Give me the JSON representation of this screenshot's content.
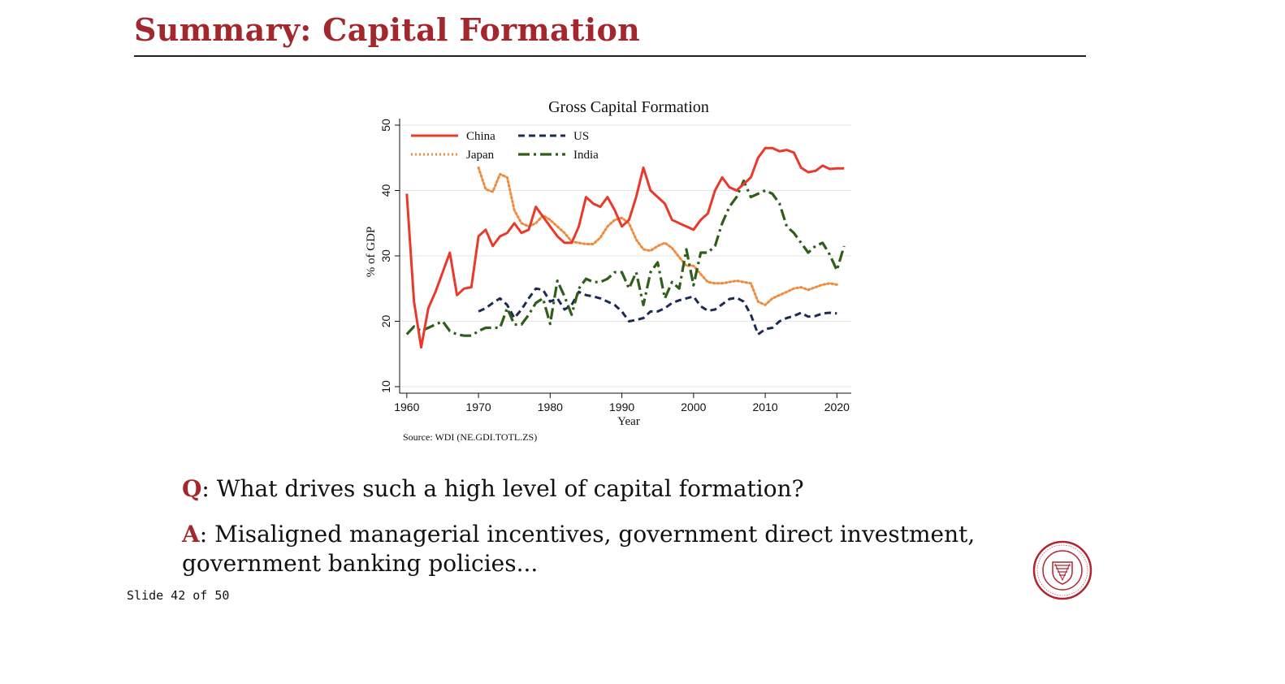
{
  "slide": {
    "title": "Summary: Capital Formation",
    "counter": "Slide 42 of 50",
    "question_key": "Q",
    "question_text": ": What drives such a high level of capital formation?",
    "answer_key": "A",
    "answer_text": ": Misaligned managerial incentives, government direct investment, government banking policies..."
  },
  "colors": {
    "accent": "#a3282e",
    "china": "#e8392b",
    "us": "#1c2a54",
    "japan": "#f08a3c",
    "india": "#2e5e1a"
  },
  "chart_data": {
    "type": "line",
    "title": "Gross Capital Formation",
    "xlabel": "Year",
    "ylabel": "% of GDP",
    "source": "Source: WDI (NE.GDI.TOTL.ZS)",
    "xlim": [
      1959,
      2022
    ],
    "ylim": [
      9,
      51
    ],
    "xticks": [
      1960,
      1970,
      1980,
      1990,
      2000,
      2010,
      2020
    ],
    "yticks": [
      10,
      20,
      30,
      40,
      50
    ],
    "grid": true,
    "legend_position": "top-left",
    "series": [
      {
        "name": "China",
        "style": "solid",
        "x": [
          1960,
          1961,
          1962,
          1963,
          1964,
          1965,
          1966,
          1967,
          1968,
          1969,
          1970,
          1971,
          1972,
          1973,
          1974,
          1975,
          1976,
          1977,
          1978,
          1979,
          1980,
          1981,
          1982,
          1983,
          1984,
          1985,
          1986,
          1987,
          1988,
          1989,
          1990,
          1991,
          1992,
          1993,
          1994,
          1995,
          1996,
          1997,
          1998,
          1999,
          2000,
          2001,
          2002,
          2003,
          2004,
          2005,
          2006,
          2007,
          2008,
          2009,
          2010,
          2011,
          2012,
          2013,
          2014,
          2015,
          2016,
          2017,
          2018,
          2019,
          2020,
          2021
        ],
        "values": [
          39.5,
          23,
          16,
          22,
          24.5,
          27.5,
          30.5,
          24,
          25,
          25.2,
          33,
          34,
          31.5,
          33,
          33.5,
          35,
          33.5,
          34,
          37.5,
          36,
          34.5,
          33,
          32,
          32,
          34.5,
          39,
          38,
          37.5,
          39,
          37,
          34.5,
          35.5,
          39,
          43.5,
          40,
          39,
          38,
          35.5,
          35,
          34.5,
          34,
          35.5,
          36.5,
          40,
          42,
          40.5,
          40,
          41,
          42,
          45,
          46.5,
          46.5,
          46,
          46.2,
          45.8,
          43.5,
          42.8,
          43,
          43.8,
          43.3,
          43.4,
          43.4
        ]
      },
      {
        "name": "US",
        "style": "dash",
        "x": [
          1970,
          1971,
          1972,
          1973,
          1974,
          1975,
          1976,
          1977,
          1978,
          1979,
          1980,
          1981,
          1982,
          1983,
          1984,
          1985,
          1986,
          1987,
          1988,
          1989,
          1990,
          1991,
          1992,
          1993,
          1994,
          1995,
          1996,
          1997,
          1998,
          1999,
          2000,
          2001,
          2002,
          2003,
          2004,
          2005,
          2006,
          2007,
          2008,
          2009,
          2010,
          2011,
          2012,
          2013,
          2014,
          2015,
          2016,
          2017,
          2018,
          2019,
          2020
        ],
        "values": [
          21.5,
          22,
          22.8,
          23.5,
          22.5,
          20.5,
          21.8,
          23.5,
          25,
          24.8,
          23,
          23.5,
          21.8,
          22.5,
          24.5,
          24,
          23.8,
          23.5,
          23,
          22.5,
          21.5,
          20,
          20.2,
          20.5,
          21.5,
          21.5,
          22,
          22.8,
          23.2,
          23.5,
          23.8,
          22.3,
          21.6,
          21.8,
          22.6,
          23.4,
          23.6,
          23,
          21,
          18,
          18.8,
          19,
          20,
          20.5,
          20.8,
          21.3,
          20.7,
          20.8,
          21.2,
          21.3,
          21.2
        ]
      },
      {
        "name": "Japan",
        "style": "dot",
        "x": [
          1970,
          1971,
          1972,
          1973,
          1974,
          1975,
          1976,
          1977,
          1978,
          1979,
          1980,
          1981,
          1982,
          1983,
          1984,
          1985,
          1986,
          1987,
          1988,
          1989,
          1990,
          1991,
          1992,
          1993,
          1994,
          1995,
          1996,
          1997,
          1998,
          1999,
          2000,
          2001,
          2002,
          2003,
          2004,
          2005,
          2006,
          2007,
          2008,
          2009,
          2010,
          2011,
          2012,
          2013,
          2014,
          2015,
          2016,
          2017,
          2018,
          2019,
          2020
        ],
        "values": [
          43.5,
          40.2,
          39.8,
          42.5,
          42,
          37,
          35,
          34.5,
          35,
          36.2,
          35.5,
          34.5,
          33.5,
          32.2,
          32,
          31.8,
          31.8,
          32.8,
          34.5,
          35.5,
          35.8,
          35,
          32.5,
          31,
          30.8,
          31.5,
          32,
          31.2,
          29.8,
          28.5,
          28.5,
          27.2,
          26,
          25.8,
          25.8,
          26,
          26.2,
          26,
          25.8,
          23,
          22.5,
          23.5,
          24,
          24.5,
          25,
          25.2,
          24.8,
          25.2,
          25.6,
          25.8,
          25.6
        ]
      },
      {
        "name": "India",
        "style": "dashdot",
        "x": [
          1960,
          1961,
          1962,
          1963,
          1964,
          1965,
          1966,
          1967,
          1968,
          1969,
          1970,
          1971,
          1972,
          1973,
          1974,
          1975,
          1976,
          1977,
          1978,
          1979,
          1980,
          1981,
          1982,
          1983,
          1984,
          1985,
          1986,
          1987,
          1988,
          1989,
          1990,
          1991,
          1992,
          1993,
          1994,
          1995,
          1996,
          1997,
          1998,
          1999,
          2000,
          2001,
          2002,
          2003,
          2004,
          2005,
          2006,
          2007,
          2008,
          2009,
          2010,
          2011,
          2012,
          2013,
          2014,
          2015,
          2016,
          2017,
          2018,
          2019,
          2020,
          2021
        ],
        "values": [
          18,
          19.2,
          18.5,
          19,
          19.5,
          20,
          18.5,
          18,
          17.8,
          17.8,
          18.5,
          19,
          19,
          19,
          22,
          19.5,
          19.5,
          21,
          22.8,
          23.5,
          19.6,
          26.2,
          23.8,
          21,
          25,
          26.5,
          26,
          26,
          26.5,
          27.5,
          27.5,
          25,
          27.5,
          22.5,
          27.5,
          29,
          23.5,
          26,
          25,
          31,
          25.5,
          30.5,
          30.5,
          31.5,
          35,
          37.5,
          39,
          41.5,
          39,
          39.5,
          40,
          39.5,
          38,
          34.5,
          33.5,
          32,
          30.5,
          31.5,
          32,
          30.2,
          27.8,
          31.5
        ]
      }
    ]
  }
}
